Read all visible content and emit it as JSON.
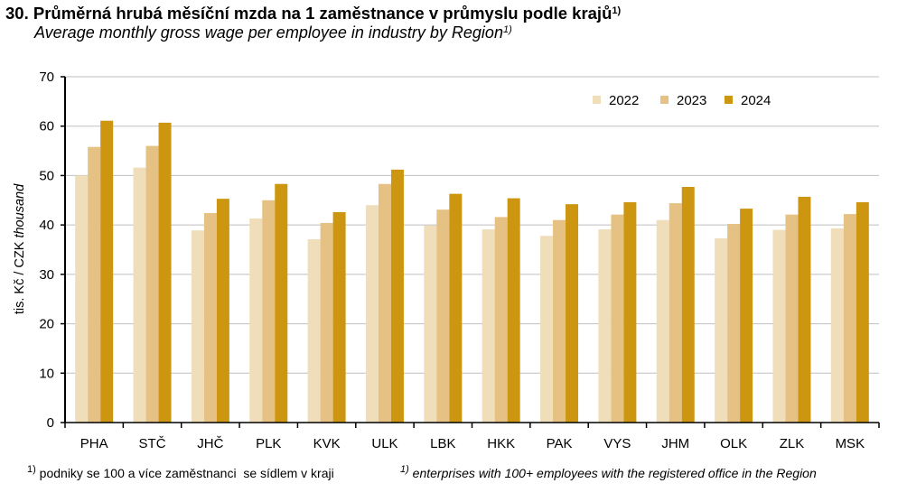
{
  "header": {
    "title": "30. Průměrná hrubá měsíční mzda na 1 zaměstnance v průmyslu podle krajů",
    "title_sup": "1)",
    "subtitle": "Average monthly gross wage per employee in industry by Region",
    "subtitle_sup": "1)"
  },
  "footnotes": {
    "cz_sup": "1)",
    "cz": "podniky se 100 a více zaměstnanci  se sídlem v kraji",
    "en_sup": "1)",
    "en": "enterprises with 100+ employees with the registered office in the Region"
  },
  "chart_data": {
    "type": "bar",
    "title": "Průměrná hrubá měsíční mzda na 1 zaměstnance v průmyslu podle krajů",
    "ylabel": "tis. Kč / CZK thousand",
    "ylabel_cz": "tis. Kč / CZK",
    "ylabel_en": "thousand",
    "xlabel": "",
    "ylim": [
      0,
      70
    ],
    "yticks": [
      0,
      10,
      20,
      30,
      40,
      50,
      60,
      70
    ],
    "grid": true,
    "legend_position": "top-right",
    "categories": [
      "PHA",
      "STČ",
      "JHČ",
      "PLK",
      "KVK",
      "ULK",
      "LBK",
      "HKK",
      "PAK",
      "VYS",
      "JHM",
      "OLK",
      "ZLK",
      "MSK"
    ],
    "series": [
      {
        "name": "2022",
        "color": "#f0deba",
        "values": [
          50.0,
          51.6,
          38.9,
          41.3,
          37.1,
          44.0,
          39.9,
          39.1,
          37.8,
          39.1,
          41.0,
          37.3,
          39.0,
          39.3
        ]
      },
      {
        "name": "2023",
        "color": "#e5c283",
        "values": [
          55.8,
          56.0,
          42.4,
          45.0,
          40.4,
          48.3,
          43.1,
          41.6,
          41.0,
          42.1,
          44.4,
          40.2,
          42.1,
          42.2
        ]
      },
      {
        "name": "2024",
        "color": "#cc9610",
        "values": [
          61.1,
          60.7,
          45.3,
          48.3,
          42.6,
          51.2,
          46.3,
          45.4,
          44.2,
          44.6,
          47.7,
          43.3,
          45.7,
          44.6
        ]
      }
    ]
  }
}
